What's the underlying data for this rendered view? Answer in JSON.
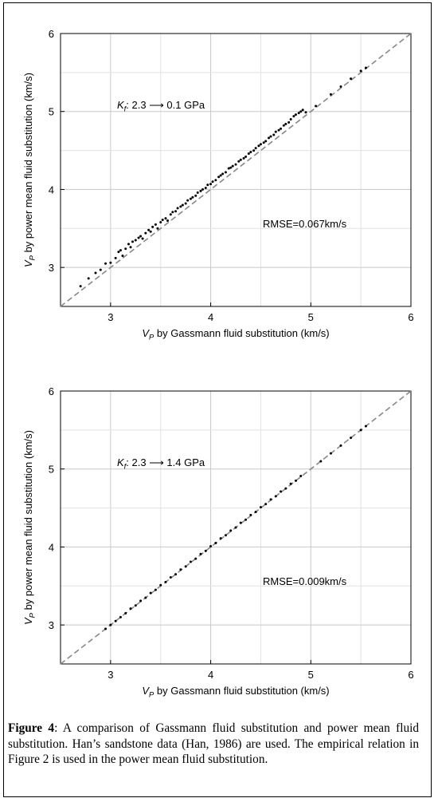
{
  "figure": {
    "caption_label": "Figure 4",
    "caption_text": ": A comparison of Gassmann fluid substitution and power mean fluid substitution. Han’s sandstone data (Han, 1986) are used. The empirical relation in Figure 2 is used in the power mean fluid substitution."
  },
  "chart_data": [
    {
      "type": "scatter",
      "title": "",
      "xlabel": "V_P by Gassmann fluid substitution (km/s)",
      "ylabel": "V_P by power mean fluid substitution (km/s)",
      "xlim": [
        2.5,
        6
      ],
      "ylim": [
        2.5,
        6
      ],
      "xticks": [
        3,
        4,
        5,
        6
      ],
      "yticks": [
        3,
        4,
        5,
        6
      ],
      "grid": true,
      "annotations": [
        "K_f: 2.3 ⟶ 0.1 GPa",
        "RMSE=0.067km/s"
      ],
      "series": [
        {
          "type": "line",
          "style": "dashed",
          "color": "#888888",
          "x": [
            2.5,
            6
          ],
          "y": [
            2.5,
            6
          ]
        },
        {
          "type": "scatter",
          "color": "#000000",
          "points": [
            [
              2.7,
              2.76
            ],
            [
              2.78,
              2.86
            ],
            [
              2.85,
              2.93
            ],
            [
              2.9,
              2.97
            ],
            [
              2.95,
              3.05
            ],
            [
              3.0,
              3.06
            ],
            [
              3.05,
              3.12
            ],
            [
              3.08,
              3.2
            ],
            [
              3.1,
              3.22
            ],
            [
              3.12,
              3.15
            ],
            [
              3.15,
              3.24
            ],
            [
              3.18,
              3.3
            ],
            [
              3.2,
              3.26
            ],
            [
              3.22,
              3.33
            ],
            [
              3.25,
              3.35
            ],
            [
              3.28,
              3.38
            ],
            [
              3.3,
              3.4
            ],
            [
              3.32,
              3.37
            ],
            [
              3.35,
              3.44
            ],
            [
              3.38,
              3.48
            ],
            [
              3.4,
              3.46
            ],
            [
              3.42,
              3.52
            ],
            [
              3.45,
              3.55
            ],
            [
              3.47,
              3.5
            ],
            [
              3.5,
              3.58
            ],
            [
              3.52,
              3.61
            ],
            [
              3.55,
              3.63
            ],
            [
              3.57,
              3.6
            ],
            [
              3.6,
              3.68
            ],
            [
              3.62,
              3.71
            ],
            [
              3.65,
              3.72
            ],
            [
              3.67,
              3.76
            ],
            [
              3.7,
              3.78
            ],
            [
              3.72,
              3.8
            ],
            [
              3.75,
              3.82
            ],
            [
              3.77,
              3.86
            ],
            [
              3.8,
              3.88
            ],
            [
              3.82,
              3.9
            ],
            [
              3.85,
              3.92
            ],
            [
              3.87,
              3.96
            ],
            [
              3.9,
              3.98
            ],
            [
              3.92,
              4.0
            ],
            [
              3.95,
              4.02
            ],
            [
              3.97,
              4.06
            ],
            [
              4.0,
              4.07
            ],
            [
              4.02,
              4.1
            ],
            [
              4.05,
              4.12
            ],
            [
              4.08,
              4.16
            ],
            [
              4.1,
              4.18
            ],
            [
              4.12,
              4.2
            ],
            [
              4.15,
              4.22
            ],
            [
              4.18,
              4.27
            ],
            [
              4.2,
              4.28
            ],
            [
              4.22,
              4.3
            ],
            [
              4.25,
              4.32
            ],
            [
              4.28,
              4.36
            ],
            [
              4.3,
              4.38
            ],
            [
              4.33,
              4.4
            ],
            [
              4.35,
              4.42
            ],
            [
              4.38,
              4.46
            ],
            [
              4.4,
              4.48
            ],
            [
              4.43,
              4.5
            ],
            [
              4.45,
              4.53
            ],
            [
              4.48,
              4.56
            ],
            [
              4.5,
              4.58
            ],
            [
              4.53,
              4.6
            ],
            [
              4.55,
              4.62
            ],
            [
              4.58,
              4.66
            ],
            [
              4.6,
              4.68
            ],
            [
              4.63,
              4.7
            ],
            [
              4.65,
              4.74
            ],
            [
              4.68,
              4.76
            ],
            [
              4.7,
              4.78
            ],
            [
              4.73,
              4.82
            ],
            [
              4.75,
              4.84
            ],
            [
              4.78,
              4.86
            ],
            [
              4.8,
              4.9
            ],
            [
              4.83,
              4.94
            ],
            [
              4.85,
              4.96
            ],
            [
              4.88,
              4.98
            ],
            [
              4.9,
              5.0
            ],
            [
              4.92,
              5.02
            ],
            [
              4.95,
              4.99
            ],
            [
              5.05,
              5.07
            ],
            [
              5.2,
              5.22
            ],
            [
              5.3,
              5.32
            ],
            [
              5.4,
              5.42
            ],
            [
              5.5,
              5.52
            ],
            [
              5.55,
              5.56
            ]
          ]
        }
      ]
    },
    {
      "type": "scatter",
      "title": "",
      "xlabel": "V_P by Gassmann fluid substitution (km/s)",
      "ylabel": "V_P by power mean fluid substitution (km/s)",
      "xlim": [
        2.5,
        6
      ],
      "ylim": [
        2.5,
        6
      ],
      "xticks": [
        3,
        4,
        5,
        6
      ],
      "yticks": [
        3,
        4,
        5,
        6
      ],
      "grid": true,
      "annotations": [
        "K_f: 2.3 ⟶ 1.4 GPa",
        "RMSE=0.009km/s"
      ],
      "series": [
        {
          "type": "line",
          "style": "dashed",
          "color": "#888888",
          "x": [
            2.5,
            6
          ],
          "y": [
            2.5,
            6
          ]
        },
        {
          "type": "scatter",
          "color": "#000000",
          "points": [
            [
              2.95,
              2.95
            ],
            [
              3.0,
              3.0
            ],
            [
              3.05,
              3.05
            ],
            [
              3.1,
              3.1
            ],
            [
              3.15,
              3.15
            ],
            [
              3.2,
              3.21
            ],
            [
              3.25,
              3.25
            ],
            [
              3.3,
              3.31
            ],
            [
              3.35,
              3.35
            ],
            [
              3.4,
              3.41
            ],
            [
              3.45,
              3.45
            ],
            [
              3.5,
              3.51
            ],
            [
              3.55,
              3.55
            ],
            [
              3.6,
              3.61
            ],
            [
              3.65,
              3.65
            ],
            [
              3.7,
              3.71
            ],
            [
              3.75,
              3.75
            ],
            [
              3.8,
              3.81
            ],
            [
              3.85,
              3.85
            ],
            [
              3.9,
              3.91
            ],
            [
              3.95,
              3.95
            ],
            [
              4.0,
              4.01
            ],
            [
              4.05,
              4.05
            ],
            [
              4.1,
              4.11
            ],
            [
              4.15,
              4.15
            ],
            [
              4.2,
              4.21
            ],
            [
              4.25,
              4.25
            ],
            [
              4.3,
              4.31
            ],
            [
              4.35,
              4.35
            ],
            [
              4.4,
              4.41
            ],
            [
              4.45,
              4.45
            ],
            [
              4.5,
              4.51
            ],
            [
              4.55,
              4.55
            ],
            [
              4.6,
              4.61
            ],
            [
              4.65,
              4.65
            ],
            [
              4.7,
              4.71
            ],
            [
              4.75,
              4.75
            ],
            [
              4.8,
              4.81
            ],
            [
              4.85,
              4.85
            ],
            [
              4.9,
              4.91
            ],
            [
              5.1,
              5.1
            ],
            [
              5.2,
              5.2
            ],
            [
              5.3,
              5.3
            ],
            [
              5.4,
              5.4
            ],
            [
              5.5,
              5.5
            ],
            [
              5.55,
              5.55
            ]
          ]
        }
      ]
    }
  ]
}
